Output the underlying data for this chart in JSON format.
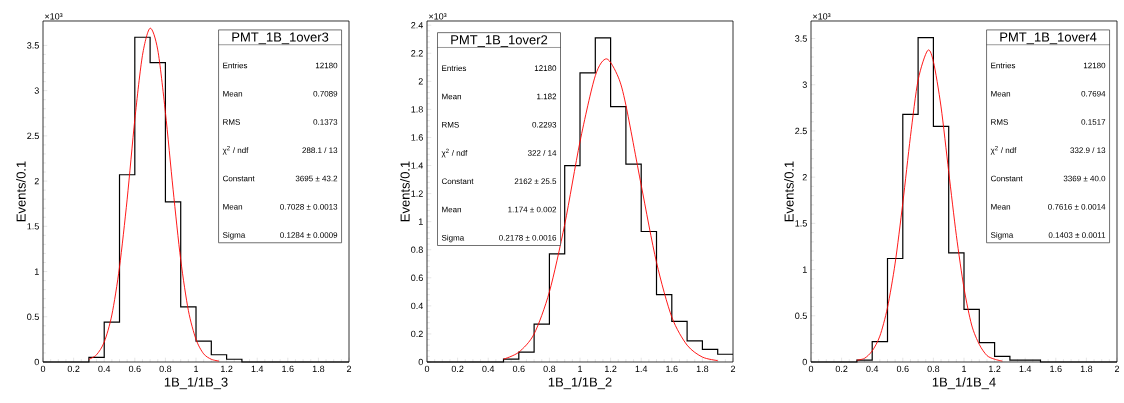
{
  "chart_data": [
    {
      "type": "histogram",
      "title": "PMT_1B_1over3",
      "xlabel": "1B_1/1B_3",
      "ylabel": "Events/0.1",
      "annotations": [
        "×10³",
        "Entries",
        "12180",
        "Mean",
        "0.7089",
        "RMS",
        "0.1373",
        "χ$^{2}$ / ndf",
        "288.1 / 13",
        "Constant",
        "3695 ± 43.2",
        "Mean",
        "0.7028 ± 0.0013",
        "Sigma",
        "0.1284 ± 0.0009"
      ],
      "bins": [
        0,
        0.1,
        0.2,
        0.3,
        0.4,
        0.5,
        0.6,
        0.7,
        0.8,
        0.9,
        1.0,
        1.1,
        1.2,
        1.3,
        1.4,
        1.5,
        1.6,
        1.7,
        1.8,
        1.9,
        2.0
      ],
      "series": [
        {
          "type": "histogram",
          "color": "#000000",
          "values": [
            0,
            0,
            0,
            0.05,
            0.44,
            2.07,
            3.59,
            3.31,
            1.77,
            0.61,
            0.23,
            0.08,
            0.03,
            0,
            0,
            0,
            0,
            0,
            0,
            0
          ]
        },
        {
          "type": "line",
          "color": "#ff0000",
          "x": [
            0.3,
            0.35,
            0.4,
            0.45,
            0.5,
            0.55,
            0.6,
            0.65,
            0.7,
            0.75,
            0.8,
            0.85,
            0.9,
            0.95,
            1.0,
            1.05,
            1.1,
            1.15
          ],
          "values": [
            0.03,
            0.08,
            0.22,
            0.52,
            1.05,
            1.8,
            2.68,
            3.39,
            3.69,
            3.45,
            2.76,
            1.91,
            1.13,
            0.57,
            0.25,
            0.09,
            0.03,
            0.01
          ]
        }
      ],
      "xlim": [
        0,
        2
      ],
      "xticks": [
        0,
        0.2,
        0.4,
        0.6,
        0.8,
        1,
        1.2,
        1.4,
        1.6,
        1.8,
        2
      ],
      "ylim": [
        0,
        3.77
      ],
      "yticks": [
        0,
        0.5,
        1,
        1.5,
        2,
        2.5,
        3,
        3.5
      ]
    },
    {
      "type": "histogram",
      "title": "PMT_1B_1over2",
      "xlabel": "1B_1/1B_2",
      "ylabel": "Events/0.1",
      "annotations": [
        "×10³",
        "Entries",
        "12180",
        "Mean",
        "1.182",
        "RMS",
        "0.2293",
        "χ$^{2}$ / ndf",
        "322 / 14",
        "Constant",
        "2162 ± 25.5",
        "Mean",
        "1.174 ± 0.002",
        "Sigma",
        "0.2178 ± 0.0016"
      ],
      "bins": [
        0,
        0.1,
        0.2,
        0.3,
        0.4,
        0.5,
        0.6,
        0.7,
        0.8,
        0.9,
        1.0,
        1.1,
        1.2,
        1.3,
        1.4,
        1.5,
        1.6,
        1.7,
        1.8,
        1.9,
        2.0
      ],
      "series": [
        {
          "type": "histogram",
          "color": "#000000",
          "values": [
            0,
            0,
            0,
            0,
            0,
            0.02,
            0.07,
            0.27,
            0.77,
            1.4,
            2.06,
            2.31,
            1.82,
            1.41,
            0.93,
            0.48,
            0.29,
            0.15,
            0.09,
            0.055
          ]
        },
        {
          "type": "line",
          "color": "#ff0000",
          "x": [
            0.5,
            0.6,
            0.7,
            0.8,
            0.9,
            1.0,
            1.1,
            1.174,
            1.25,
            1.3,
            1.4,
            1.5,
            1.6,
            1.7,
            1.8,
            1.9
          ],
          "values": [
            0.02,
            0.07,
            0.2,
            0.5,
            0.98,
            1.57,
            2.04,
            2.16,
            2.03,
            1.83,
            1.26,
            0.71,
            0.32,
            0.12,
            0.035,
            0.01
          ]
        }
      ],
      "xlim": [
        0,
        2
      ],
      "xticks": [
        0,
        0.2,
        0.4,
        0.6,
        0.8,
        1,
        1.2,
        1.4,
        1.6,
        1.8,
        2
      ],
      "ylim": [
        0,
        2.43
      ],
      "yticks": [
        0,
        0.2,
        0.4,
        0.6,
        0.8,
        1,
        1.2,
        1.4,
        1.6,
        1.8,
        2,
        2.2,
        2.4
      ]
    },
    {
      "type": "histogram",
      "title": "PMT_1B_1over4",
      "xlabel": "1B_1/1B_4",
      "ylabel": "Events/0.1",
      "annotations": [
        "×10³",
        "Entries",
        "12180",
        "Mean",
        "0.7694",
        "RMS",
        "0.1517",
        "χ$^{2}$ / ndf",
        "332.9 / 13",
        "Constant",
        "3369 ± 40.0",
        "Mean",
        "0.7616 ± 0.0014",
        "Sigma",
        "0.1403 ± 0.0011"
      ],
      "bins": [
        0,
        0.1,
        0.2,
        0.3,
        0.4,
        0.5,
        0.6,
        0.7,
        0.8,
        0.9,
        1.0,
        1.1,
        1.2,
        1.3,
        1.4,
        1.5,
        1.6,
        1.7,
        1.8,
        1.9,
        2.0
      ],
      "series": [
        {
          "type": "histogram",
          "color": "#000000",
          "values": [
            0,
            0,
            0,
            0.02,
            0.22,
            1.12,
            2.68,
            3.51,
            2.55,
            1.18,
            0.57,
            0.21,
            0.06,
            0.02,
            0.02,
            0,
            0,
            0,
            0,
            0
          ]
        },
        {
          "type": "line",
          "color": "#ff0000",
          "x": [
            0.3,
            0.35,
            0.4,
            0.45,
            0.5,
            0.55,
            0.6,
            0.65,
            0.7,
            0.762,
            0.8,
            0.85,
            0.9,
            0.95,
            1.0,
            1.05,
            1.1,
            1.15,
            1.2,
            1.25
          ],
          "values": [
            0.02,
            0.04,
            0.12,
            0.28,
            0.59,
            1.07,
            1.72,
            2.44,
            3.05,
            3.37,
            3.25,
            2.76,
            2.06,
            1.37,
            0.8,
            0.4,
            0.19,
            0.07,
            0.03,
            0.01
          ]
        }
      ],
      "xlim": [
        0,
        2
      ],
      "xticks": [
        0,
        0.2,
        0.4,
        0.6,
        0.8,
        1,
        1.2,
        1.4,
        1.6,
        1.8,
        2
      ],
      "ylim": [
        0,
        3.69
      ],
      "yticks": [
        0,
        0.5,
        1,
        1.5,
        2,
        2.5,
        3,
        3.5
      ]
    }
  ]
}
